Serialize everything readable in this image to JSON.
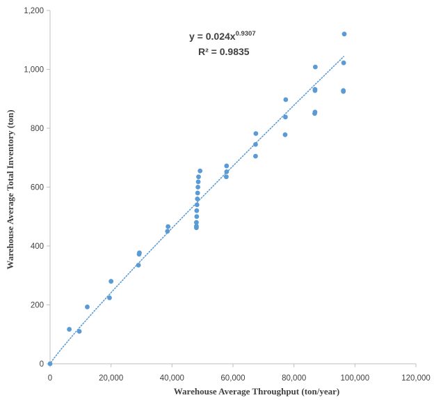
{
  "chart_data": {
    "type": "scatter",
    "title": "",
    "xlabel": "Warehouse Average Throughput (ton/year)",
    "ylabel": "Warehouse Average Total Inventory (ton)",
    "xlim": [
      0,
      120000
    ],
    "ylim": [
      0,
      1200
    ],
    "x_ticks": [
      0,
      20000,
      40000,
      60000,
      80000,
      100000,
      120000
    ],
    "x_tick_labels": [
      "0",
      "20,000",
      "40,000",
      "60,000",
      "80,000",
      "100,000",
      "120,000"
    ],
    "y_ticks": [
      0,
      200,
      400,
      600,
      800,
      1000,
      1200
    ],
    "y_tick_labels": [
      "0",
      "200",
      "400",
      "600",
      "800",
      "1,000",
      "1,200"
    ],
    "grid": false,
    "legend": "none",
    "marker_color": "#5b9bd5",
    "trendline": {
      "type": "power",
      "coefficient": 0.024,
      "exponent": 0.9307,
      "color": "#5b9bd5",
      "style": "dotted",
      "equation_text": "y = 0.024x",
      "exponent_text": "0.9307",
      "r2_text": "R² = 0.9835"
    },
    "series": [
      {
        "points": [
          [
            0,
            0
          ],
          [
            6300,
            117
          ],
          [
            9600,
            110
          ],
          [
            12200,
            193
          ],
          [
            19500,
            224
          ],
          [
            20000,
            280
          ],
          [
            29000,
            335
          ],
          [
            29200,
            372
          ],
          [
            29300,
            377
          ],
          [
            38500,
            450
          ],
          [
            38700,
            466
          ],
          [
            48000,
            462
          ],
          [
            48000,
            467
          ],
          [
            48000,
            480
          ],
          [
            48100,
            500
          ],
          [
            48100,
            520
          ],
          [
            48200,
            540
          ],
          [
            48300,
            560
          ],
          [
            48400,
            580
          ],
          [
            48500,
            600
          ],
          [
            48600,
            618
          ],
          [
            48700,
            635
          ],
          [
            49200,
            655
          ],
          [
            57800,
            635
          ],
          [
            57900,
            652
          ],
          [
            57900,
            672
          ],
          [
            67400,
            705
          ],
          [
            67400,
            745
          ],
          [
            67500,
            782
          ],
          [
            77100,
            778
          ],
          [
            77200,
            838
          ],
          [
            77300,
            897
          ],
          [
            86800,
            850
          ],
          [
            86900,
            855
          ],
          [
            86900,
            928
          ],
          [
            86900,
            932
          ],
          [
            87000,
            1008
          ],
          [
            96200,
            925
          ],
          [
            96200,
            928
          ],
          [
            96300,
            1022
          ],
          [
            96500,
            1120
          ]
        ]
      }
    ]
  }
}
